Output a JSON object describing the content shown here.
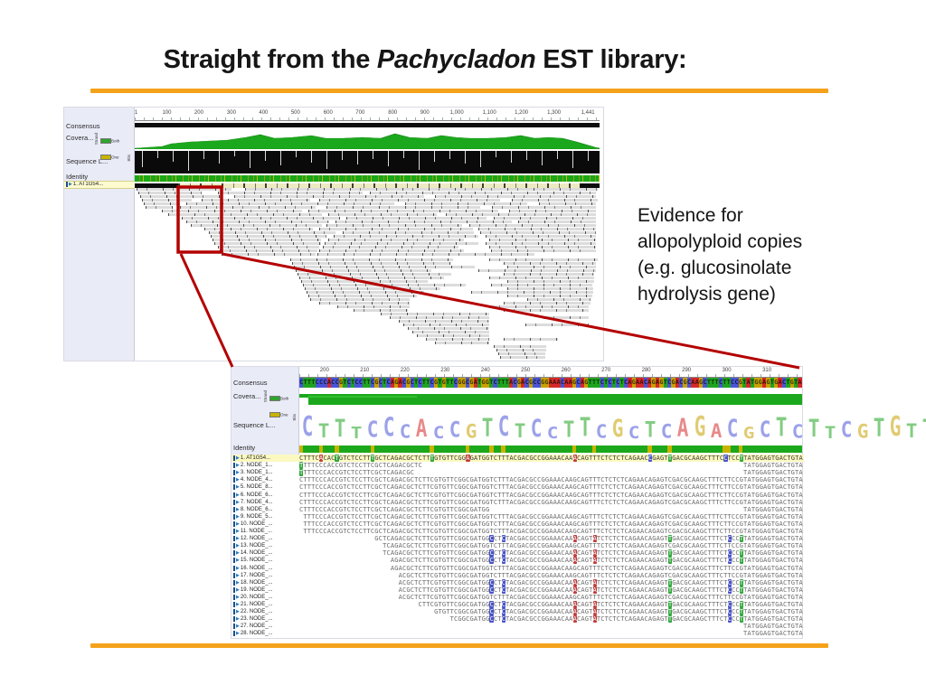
{
  "slide": {
    "title_prefix": "Straight from the ",
    "title_italic": "Pachycladon",
    "title_suffix": " EST library:",
    "accent_color": "#F5A21B",
    "callout_color": "#B40000",
    "note_lines": [
      "Evidence for",
      "allopolyploid copies",
      "(e.g. glucosinolate",
      "hydrolysis gene)"
    ]
  },
  "tracks": {
    "consensus": "Consensus",
    "coverage": "Covera...",
    "logo": "Sequence L...",
    "identity": "Identity"
  },
  "legend": {
    "both": "Both",
    "one": "One",
    "strand": "Strand",
    "bits": "Bits"
  },
  "top_panel": {
    "reference_label": "1. AT1G54...",
    "ruler": [
      {
        "t": "1",
        "p": 0.3
      },
      {
        "t": "100",
        "p": 6.9
      },
      {
        "t": "200",
        "p": 13.8
      },
      {
        "t": "300",
        "p": 20.8
      },
      {
        "t": "400",
        "p": 27.7
      },
      {
        "t": "500",
        "p": 34.6
      },
      {
        "t": "600",
        "p": 41.6
      },
      {
        "t": "700",
        "p": 48.5
      },
      {
        "t": "800",
        "p": 55.5
      },
      {
        "t": "900",
        "p": 62.4
      },
      {
        "t": "1,000",
        "p": 69.3
      },
      {
        "t": "1,100",
        "p": 76.3
      },
      {
        "t": "1,200",
        "p": 83.2
      },
      {
        "t": "1,300",
        "p": 90.2
      },
      {
        "t": "1,441",
        "p": 97.5
      }
    ],
    "coverage_profile": [
      [
        0,
        1
      ],
      [
        3,
        2
      ],
      [
        6,
        3
      ],
      [
        8,
        6
      ],
      [
        12,
        8
      ],
      [
        16,
        9
      ],
      [
        20,
        10
      ],
      [
        24,
        13
      ],
      [
        27,
        16
      ],
      [
        30,
        12
      ],
      [
        34,
        13
      ],
      [
        38,
        15
      ],
      [
        41,
        12
      ],
      [
        45,
        12
      ],
      [
        49,
        13
      ],
      [
        53,
        12
      ],
      [
        56,
        17
      ],
      [
        59,
        13
      ],
      [
        63,
        12
      ],
      [
        66,
        15
      ],
      [
        69,
        13
      ],
      [
        72,
        12
      ],
      [
        76,
        12
      ],
      [
        80,
        13
      ],
      [
        83,
        15
      ],
      [
        86,
        12
      ],
      [
        89,
        13
      ],
      [
        92,
        12
      ],
      [
        95,
        8
      ],
      [
        97,
        5
      ],
      [
        99,
        2
      ],
      [
        100,
        1
      ]
    ],
    "reads": [
      [
        2,
        0,
        105
      ],
      [
        122,
        0,
        390
      ],
      [
        4,
        4,
        70
      ],
      [
        92,
        4,
        160
      ],
      [
        260,
        4,
        250
      ],
      [
        6,
        8,
        90
      ],
      [
        110,
        8,
        210
      ],
      [
        332,
        8,
        178
      ],
      [
        8,
        12,
        55
      ],
      [
        74,
        12,
        120
      ],
      [
        204,
        12,
        200
      ],
      [
        417,
        12,
        95
      ],
      [
        10,
        16,
        40
      ],
      [
        57,
        16,
        230
      ],
      [
        299,
        16,
        135
      ],
      [
        447,
        16,
        63
      ],
      [
        12,
        20,
        30
      ],
      [
        50,
        20,
        150
      ],
      [
        212,
        20,
        170
      ],
      [
        395,
        20,
        115
      ],
      [
        30,
        24,
        155
      ],
      [
        192,
        24,
        210
      ],
      [
        414,
        24,
        96
      ],
      [
        37,
        28,
        170
      ],
      [
        214,
        28,
        120
      ],
      [
        344,
        28,
        166
      ],
      [
        52,
        32,
        175
      ],
      [
        234,
        32,
        155
      ],
      [
        397,
        32,
        113
      ],
      [
        57,
        36,
        158
      ],
      [
        222,
        36,
        195
      ],
      [
        424,
        36,
        86
      ],
      [
        62,
        40,
        145
      ],
      [
        212,
        40,
        150
      ],
      [
        370,
        40,
        140
      ],
      [
        77,
        44,
        120
      ],
      [
        204,
        44,
        170
      ],
      [
        380,
        44,
        130
      ],
      [
        82,
        48,
        140
      ],
      [
        230,
        48,
        145
      ],
      [
        382,
        48,
        128
      ],
      [
        84,
        52,
        128
      ],
      [
        220,
        52,
        160
      ],
      [
        388,
        52,
        122
      ],
      [
        86,
        56,
        120
      ],
      [
        214,
        56,
        150
      ],
      [
        392,
        56,
        118
      ],
      [
        88,
        60,
        118
      ],
      [
        210,
        60,
        170
      ],
      [
        388,
        60,
        122
      ],
      [
        92,
        64,
        112
      ],
      [
        208,
        64,
        150
      ],
      [
        392,
        64,
        118
      ],
      [
        94,
        68,
        108
      ],
      [
        204,
        68,
        160
      ],
      [
        394,
        68,
        116
      ],
      [
        96,
        72,
        104
      ],
      [
        202,
        72,
        240
      ],
      [
        172,
        78,
        180
      ],
      [
        392,
        78,
        120
      ],
      [
        174,
        82,
        175
      ],
      [
        408,
        82,
        102
      ],
      [
        176,
        86,
        200
      ],
      [
        412,
        86,
        98
      ],
      [
        178,
        90,
        150
      ],
      [
        380,
        90,
        130
      ],
      [
        180,
        94,
        170
      ],
      [
        408,
        94,
        100
      ],
      [
        182,
        98,
        160
      ],
      [
        392,
        98,
        116
      ],
      [
        184,
        102,
        140
      ],
      [
        412,
        102,
        96
      ],
      [
        186,
        106,
        180
      ],
      [
        394,
        106,
        112
      ],
      [
        188,
        110,
        150
      ],
      [
        412,
        110,
        95
      ],
      [
        190,
        114,
        130
      ],
      [
        372,
        114,
        135
      ],
      [
        192,
        118,
        120
      ],
      [
        412,
        118,
        94
      ],
      [
        194,
        122,
        110
      ],
      [
        434,
        122,
        70
      ],
      [
        204,
        126,
        100
      ],
      [
        408,
        126,
        96
      ],
      [
        224,
        130,
        80
      ],
      [
        392,
        130,
        110
      ],
      [
        242,
        134,
        60
      ],
      [
        408,
        134,
        94
      ],
      [
        272,
        138,
        120
      ],
      [
        282,
        142,
        110
      ],
      [
        452,
        142,
        50
      ],
      [
        292,
        146,
        100
      ],
      [
        297,
        150,
        95
      ],
      [
        432,
        150,
        70
      ],
      [
        302,
        154,
        90
      ],
      [
        307,
        158,
        85
      ],
      [
        312,
        162,
        80
      ],
      [
        322,
        166,
        70
      ],
      [
        408,
        166,
        60
      ],
      [
        332,
        170,
        60
      ],
      [
        397,
        174,
        58
      ],
      [
        400,
        178,
        55
      ],
      [
        402,
        182,
        52
      ],
      [
        404,
        186,
        50
      ]
    ]
  },
  "bottom_panel": {
    "ruler": [
      {
        "t": "200",
        "p": 5
      },
      {
        "t": "210",
        "p": 13
      },
      {
        "t": "220",
        "p": 21
      },
      {
        "t": "230",
        "p": 29
      },
      {
        "t": "240",
        "p": 37
      },
      {
        "t": "250",
        "p": 45
      },
      {
        "t": "260",
        "p": 53
      },
      {
        "t": "270",
        "p": 61
      },
      {
        "t": "280",
        "p": 69
      },
      {
        "t": "290",
        "p": 77
      },
      {
        "t": "300",
        "p": 85
      },
      {
        "t": "310",
        "p": 93
      }
    ],
    "consensus": "CTTTCCCACCGTCTCCTTCGCTCAGACGCTCTTCGTGTTCGGCGATGGTCTTTACGACGCCGGAAACAAGCAGTTTCTCTCTCAGAACAGAGTCGACGCAAGCTTTCTTCCGTATGGAGTGACTGTA",
    "base_colors": {
      "A": "#d62a2a",
      "C": "#4a55d8",
      "G": "#c8a200",
      "T": "#1fa41f"
    },
    "hl_colors": {
      "r": "#c23b3b",
      "g": "#2fa63b",
      "b": "#4953c8"
    },
    "rows": [
      {
        "label": "1. AT1G54...",
        "ref": true,
        "segs": [
          [
            0,
            127
          ]
        ],
        "subs": [
          [
            5,
            "A",
            "r"
          ],
          [
            9,
            "T",
            "g"
          ],
          [
            18,
            "T",
            "g"
          ],
          [
            33,
            "T",
            "g"
          ],
          [
            42,
            "A",
            "r"
          ],
          [
            69,
            "A",
            "r"
          ],
          [
            88,
            "C",
            "b"
          ],
          [
            93,
            "T",
            "g"
          ],
          [
            107,
            "C",
            "b"
          ],
          [
            111,
            "T",
            "g"
          ]
        ]
      },
      {
        "label": "2. NODE_1...",
        "segs": [
          [
            0,
            31
          ],
          [
            112,
            127
          ]
        ],
        "subs": [
          [
            0,
            "T",
            "g"
          ]
        ]
      },
      {
        "label": "3. NODE_1...",
        "segs": [
          [
            0,
            29
          ],
          [
            112,
            127
          ]
        ],
        "subs": [
          [
            0,
            "T",
            "g"
          ]
        ]
      },
      {
        "label": "4. NODE_4...",
        "segs": [
          [
            0,
            127
          ]
        ],
        "subs": []
      },
      {
        "label": "5. NODE_8...",
        "segs": [
          [
            0,
            127
          ]
        ],
        "subs": []
      },
      {
        "label": "6. NODE_6...",
        "segs": [
          [
            0,
            127
          ]
        ],
        "subs": []
      },
      {
        "label": "7. NODE_4...",
        "segs": [
          [
            0,
            127
          ]
        ],
        "subs": []
      },
      {
        "label": "8. NODE_6...",
        "segs": [
          [
            0,
            48
          ],
          [
            112,
            127
          ]
        ],
        "subs": []
      },
      {
        "label": "9. NODE_5...",
        "segs": [
          [
            1,
            127
          ]
        ],
        "subs": []
      },
      {
        "label": "10. NODE_...",
        "segs": [
          [
            1,
            127
          ]
        ],
        "subs": []
      },
      {
        "label": "11. NODE_...",
        "segs": [
          [
            1,
            127
          ]
        ],
        "subs": []
      },
      {
        "label": "12. NODE_...",
        "segs": [
          [
            19,
            127
          ]
        ],
        "subs": [
          [
            48,
            "C",
            "b"
          ],
          [
            51,
            "C",
            "b"
          ],
          [
            69,
            "A",
            "r"
          ],
          [
            74,
            "A",
            "r"
          ],
          [
            93,
            "T",
            "g"
          ],
          [
            108,
            "C",
            "b"
          ],
          [
            111,
            "T",
            "g"
          ]
        ]
      },
      {
        "label": "13. NODE_...",
        "segs": [
          [
            21,
            127
          ]
        ],
        "subs": []
      },
      {
        "label": "14. NODE_...",
        "segs": [
          [
            21,
            127
          ]
        ],
        "subs": [
          [
            48,
            "C",
            "b"
          ],
          [
            51,
            "C",
            "b"
          ],
          [
            69,
            "A",
            "r"
          ],
          [
            74,
            "A",
            "r"
          ],
          [
            93,
            "T",
            "g"
          ],
          [
            108,
            "C",
            "b"
          ],
          [
            111,
            "T",
            "g"
          ]
        ]
      },
      {
        "label": "15. NODE_...",
        "segs": [
          [
            23,
            127
          ]
        ],
        "subs": [
          [
            48,
            "C",
            "b"
          ],
          [
            51,
            "C",
            "b"
          ],
          [
            69,
            "A",
            "r"
          ],
          [
            74,
            "A",
            "r"
          ],
          [
            93,
            "T",
            "g"
          ],
          [
            108,
            "C",
            "b"
          ],
          [
            111,
            "T",
            "g"
          ]
        ]
      },
      {
        "label": "16. NODE_...",
        "segs": [
          [
            23,
            127
          ]
        ],
        "subs": []
      },
      {
        "label": "17. NODE_...",
        "segs": [
          [
            25,
            127
          ]
        ],
        "subs": []
      },
      {
        "label": "18. NODE_...",
        "segs": [
          [
            25,
            127
          ]
        ],
        "subs": [
          [
            48,
            "C",
            "b"
          ],
          [
            51,
            "C",
            "b"
          ],
          [
            69,
            "A",
            "r"
          ],
          [
            74,
            "A",
            "r"
          ],
          [
            93,
            "T",
            "g"
          ],
          [
            108,
            "C",
            "b"
          ],
          [
            111,
            "T",
            "g"
          ]
        ]
      },
      {
        "label": "19. NODE_...",
        "segs": [
          [
            25,
            127
          ]
        ],
        "subs": [
          [
            48,
            "C",
            "b"
          ],
          [
            51,
            "C",
            "b"
          ],
          [
            69,
            "A",
            "r"
          ],
          [
            74,
            "A",
            "r"
          ],
          [
            93,
            "T",
            "g"
          ],
          [
            108,
            "C",
            "b"
          ],
          [
            111,
            "T",
            "g"
          ]
        ]
      },
      {
        "label": "20. NODE_...",
        "segs": [
          [
            25,
            127
          ]
        ],
        "subs": []
      },
      {
        "label": "21. NODE_...",
        "segs": [
          [
            30,
            127
          ]
        ],
        "subs": [
          [
            48,
            "C",
            "b"
          ],
          [
            51,
            "C",
            "b"
          ],
          [
            69,
            "A",
            "r"
          ],
          [
            74,
            "A",
            "r"
          ],
          [
            93,
            "T",
            "g"
          ],
          [
            108,
            "C",
            "b"
          ],
          [
            111,
            "T",
            "g"
          ]
        ]
      },
      {
        "label": "22. NODE_...",
        "segs": [
          [
            34,
            127
          ]
        ],
        "subs": [
          [
            48,
            "C",
            "b"
          ],
          [
            51,
            "C",
            "b"
          ],
          [
            69,
            "A",
            "r"
          ],
          [
            74,
            "A",
            "r"
          ],
          [
            93,
            "T",
            "g"
          ],
          [
            108,
            "C",
            "b"
          ],
          [
            111,
            "T",
            "g"
          ]
        ]
      },
      {
        "label": "23. NODE_...",
        "segs": [
          [
            38,
            127
          ]
        ],
        "subs": [
          [
            48,
            "C",
            "b"
          ],
          [
            51,
            "C",
            "b"
          ],
          [
            69,
            "A",
            "r"
          ],
          [
            74,
            "A",
            "r"
          ],
          [
            93,
            "T",
            "g"
          ],
          [
            108,
            "C",
            "b"
          ],
          [
            111,
            "T",
            "g"
          ]
        ]
      },
      {
        "label": "27. NODE_...",
        "segs": [
          [
            112,
            127
          ]
        ],
        "subs": []
      },
      {
        "label": "28. NODE_...",
        "segs": [
          [
            112,
            127
          ]
        ],
        "subs": []
      }
    ]
  }
}
